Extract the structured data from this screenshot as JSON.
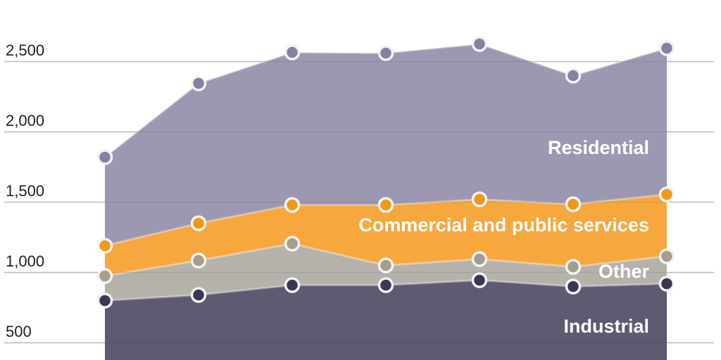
{
  "chart_data": {
    "type": "area",
    "stacked": true,
    "title": "",
    "x_tick_labels": [],
    "num_points": 7,
    "y_ticks": [
      {
        "value": 2500,
        "label": "2,500"
      },
      {
        "value": 2000,
        "label": "2,000"
      },
      {
        "value": 1500,
        "label": "1,500"
      },
      {
        "value": 1000,
        "label": "1,000"
      },
      {
        "value": 500,
        "label": "500"
      }
    ],
    "legend_position": "inside-right",
    "grid": true,
    "series": [
      {
        "name": "Industrial",
        "values": [
          800,
          840,
          910,
          910,
          945,
          900,
          920
        ],
        "fill": "#5e5a72",
        "dot": "#3a3752",
        "label_baseline_y": 473
      },
      {
        "name": "Other",
        "values": [
          175,
          245,
          295,
          140,
          150,
          140,
          195
        ],
        "fill": "#b5b1ab",
        "dot": "#a69d8c",
        "label_baseline_y": 395
      },
      {
        "name": "Commercial and public services",
        "values": [
          215,
          265,
          275,
          430,
          425,
          445,
          440
        ],
        "fill": "#f6a73e",
        "dot": "#ee9a17",
        "label_baseline_y": 329
      },
      {
        "name": "Residential",
        "values": [
          630,
          995,
          1085,
          1080,
          1105,
          915,
          1040
        ],
        "fill": "#9d98b1",
        "dot": "#8681a1",
        "label_baseline_y": 219
      }
    ],
    "cumulative_totals": [
      1820,
      2345,
      2565,
      2560,
      2625,
      2400,
      2595
    ]
  },
  "colors": {
    "background": "#ffffff",
    "gridline": "#cbcbcb",
    "gridline_overlay": "rgba(40,40,60,0.10)",
    "dot_ring": "#f3f2f4",
    "boundary_highlight": "rgba(255,255,255,0.35)",
    "axis_text": "#1f1f1f",
    "series_label_text": "#ffffff"
  }
}
